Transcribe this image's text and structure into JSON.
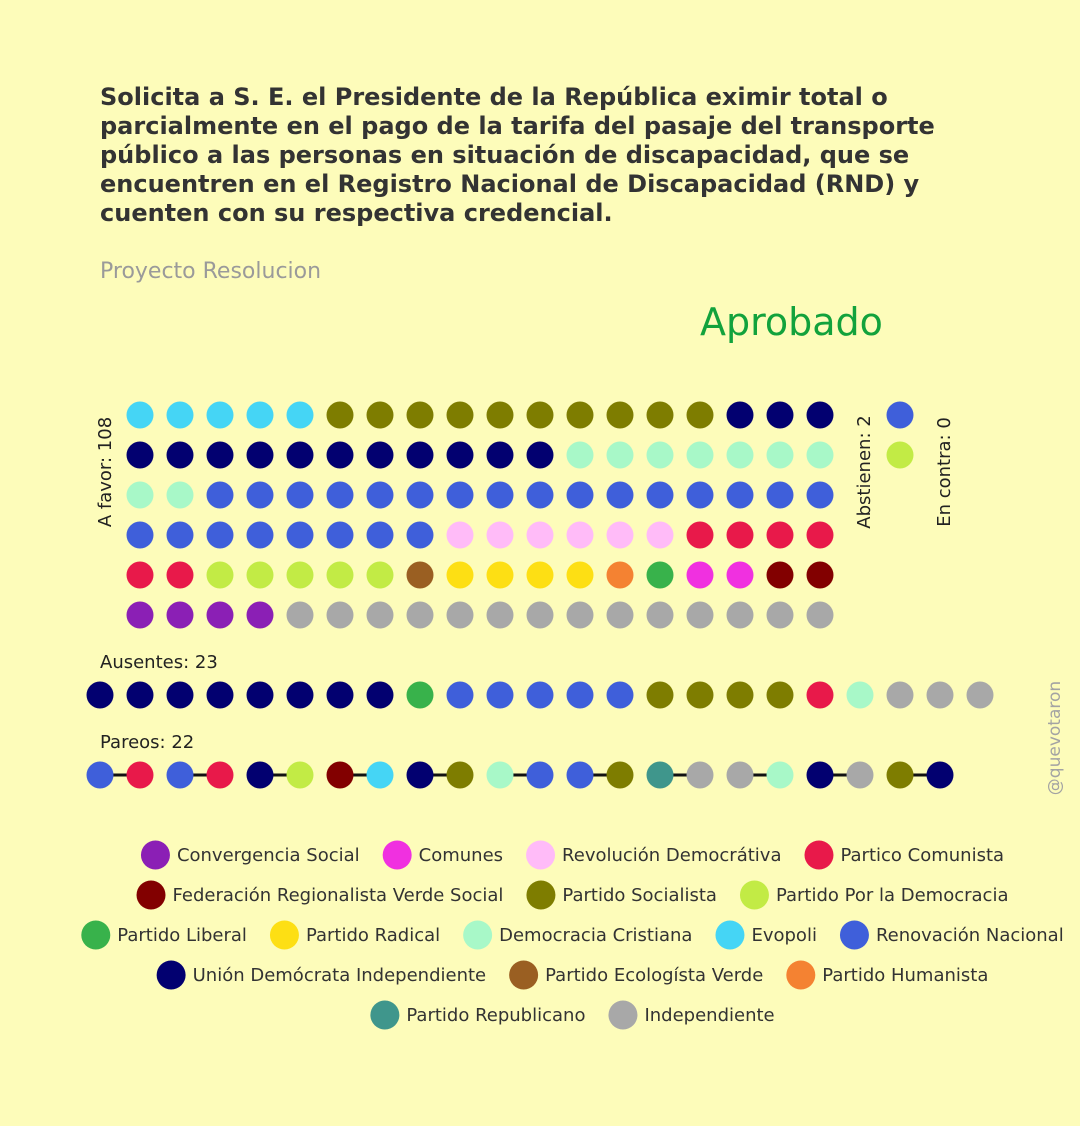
{
  "title": "Solicita a S. E. el Presidente de la República eximir total o parcialmente en el pago de la tarifa del pasaje del transporte público a las personas en situación de discapacidad, que se encuentren en el Registro Nacional de Discapacidad (RND) y cuenten con su respectiva credencial.",
  "subtitle": "Proyecto Resolucion",
  "result": "Aprobado",
  "result_color": "#12A23C",
  "credit": "@quevotaron",
  "chart_data": {
    "type": "waffle",
    "colors": {
      "Convergencia Social": "#8B1FB5",
      "Comunes": "#F030E0",
      "Revolución Democrátiva": "#FFBBF8",
      "Partico Comunista": "#E8194A",
      "Federación Regionalista Verde Social": "#820000",
      "Partido Socialista": "#7E7D00",
      "Partido Por la Democracia": "#C2EB45",
      "Partido Liberal": "#38B24B",
      "Partido Radical": "#FDDF14",
      "Democracia Cristiana": "#A8F8C8",
      "Evopoli": "#45D5F5",
      "Renovación Nacional": "#3F5FDA",
      "Unión Demócrata Independiente": "#020070",
      "Partido Ecologísta Verde": "#9A5F22",
      "Partido Humanista": "#F48232",
      "Partido Republicano": "#3F968C",
      "Independiente": "#A8A8A8"
    },
    "a_favor": {
      "label": "A favor: 108",
      "count": 108,
      "rows": [
        [
          "Evopoli",
          "Evopoli",
          "Evopoli",
          "Evopoli",
          "Evopoli",
          "Partido Socialista",
          "Partido Socialista",
          "Partido Socialista",
          "Partido Socialista",
          "Partido Socialista",
          "Partido Socialista",
          "Partido Socialista",
          "Partido Socialista",
          "Partido Socialista",
          "Partido Socialista",
          "Unión Demócrata Independiente",
          "Unión Demócrata Independiente",
          "Unión Demócrata Independiente"
        ],
        [
          "Unión Demócrata Independiente",
          "Unión Demócrata Independiente",
          "Unión Demócrata Independiente",
          "Unión Demócrata Independiente",
          "Unión Demócrata Independiente",
          "Unión Demócrata Independiente",
          "Unión Demócrata Independiente",
          "Unión Demócrata Independiente",
          "Unión Demócrata Independiente",
          "Unión Demócrata Independiente",
          "Unión Demócrata Independiente",
          "Democracia Cristiana",
          "Democracia Cristiana",
          "Democracia Cristiana",
          "Democracia Cristiana",
          "Democracia Cristiana",
          "Democracia Cristiana",
          "Democracia Cristiana"
        ],
        [
          "Democracia Cristiana",
          "Democracia Cristiana",
          "Renovación Nacional",
          "Renovación Nacional",
          "Renovación Nacional",
          "Renovación Nacional",
          "Renovación Nacional",
          "Renovación Nacional",
          "Renovación Nacional",
          "Renovación Nacional",
          "Renovación Nacional",
          "Renovación Nacional",
          "Renovación Nacional",
          "Renovación Nacional",
          "Renovación Nacional",
          "Renovación Nacional",
          "Renovación Nacional",
          "Renovación Nacional"
        ],
        [
          "Renovación Nacional",
          "Renovación Nacional",
          "Renovación Nacional",
          "Renovación Nacional",
          "Renovación Nacional",
          "Renovación Nacional",
          "Renovación Nacional",
          "Renovación Nacional",
          "Revolución Democrátiva",
          "Revolución Democrátiva",
          "Revolución Democrátiva",
          "Revolución Democrátiva",
          "Revolución Democrátiva",
          "Revolución Democrátiva",
          "Partico Comunista",
          "Partico Comunista",
          "Partico Comunista",
          "Partico Comunista"
        ],
        [
          "Partico Comunista",
          "Partico Comunista",
          "Partido Por la Democracia",
          "Partido Por la Democracia",
          "Partido Por la Democracia",
          "Partido Por la Democracia",
          "Partido Por la Democracia",
          "Partido Ecologísta Verde",
          "Partido Radical",
          "Partido Radical",
          "Partido Radical",
          "Partido Radical",
          "Partido Humanista",
          "Partido Liberal",
          "Comunes",
          "Comunes",
          "Federación Regionalista Verde Social",
          "Federación Regionalista Verde Social"
        ],
        [
          "Convergencia Social",
          "Convergencia Social",
          "Convergencia Social",
          "Convergencia Social",
          "Independiente",
          "Independiente",
          "Independiente",
          "Independiente",
          "Independiente",
          "Independiente",
          "Independiente",
          "Independiente",
          "Independiente",
          "Independiente",
          "Independiente",
          "Independiente",
          "Independiente",
          "Independiente"
        ]
      ]
    },
    "abstienen": {
      "label": "Abstienen: 2",
      "count": 2,
      "members": [
        "Renovación Nacional",
        "Partido Por la Democracia"
      ]
    },
    "en_contra": {
      "label": "En contra: 0",
      "count": 0,
      "members": []
    },
    "ausentes": {
      "label": "Ausentes: 23",
      "count": 23,
      "members": [
        "Unión Demócrata Independiente",
        "Unión Demócrata Independiente",
        "Unión Demócrata Independiente",
        "Unión Demócrata Independiente",
        "Unión Demócrata Independiente",
        "Unión Demócrata Independiente",
        "Unión Demócrata Independiente",
        "Unión Demócrata Independiente",
        "Partido Liberal",
        "Renovación Nacional",
        "Renovación Nacional",
        "Renovación Nacional",
        "Renovación Nacional",
        "Renovación Nacional",
        "Partido Socialista",
        "Partido Socialista",
        "Partido Socialista",
        "Partido Socialista",
        "Partico Comunista",
        "Democracia Cristiana",
        "Independiente",
        "Independiente",
        "Independiente"
      ]
    },
    "pareos": {
      "label": "Pareos: 22",
      "count": 22,
      "members": [
        "Renovación Nacional",
        "Partico Comunista",
        "Renovación Nacional",
        "Partico Comunista",
        "Unión Demócrata Independiente",
        "Partido Por la Democracia",
        "Federación Regionalista Verde Social",
        "Evopoli",
        "Unión Demócrata Independiente",
        "Partido Socialista",
        "Democracia Cristiana",
        "Renovación Nacional",
        "Renovación Nacional",
        "Partido Socialista",
        "Partido Republicano",
        "Independiente",
        "Independiente",
        "Democracia Cristiana",
        "Unión Demócrata Independiente",
        "Independiente",
        "Partido Socialista",
        "Unión Demócrata Independiente"
      ]
    },
    "legend": [
      [
        "Convergencia Social",
        "Comunes",
        "Revolución Democrátiva",
        "Partico Comunista"
      ],
      [
        "Federación Regionalista Verde Social",
        "Partido Socialista",
        "Partido Por la Democracia"
      ],
      [
        "Partido Liberal",
        "Partido Radical",
        "Democracia Cristiana",
        "Evopoli",
        "Renovación Nacional"
      ],
      [
        "Unión Demócrata Independiente",
        "Partido Ecologísta Verde",
        "Partido Humanista"
      ],
      [
        "Partido Republicano",
        "Independiente"
      ]
    ]
  }
}
